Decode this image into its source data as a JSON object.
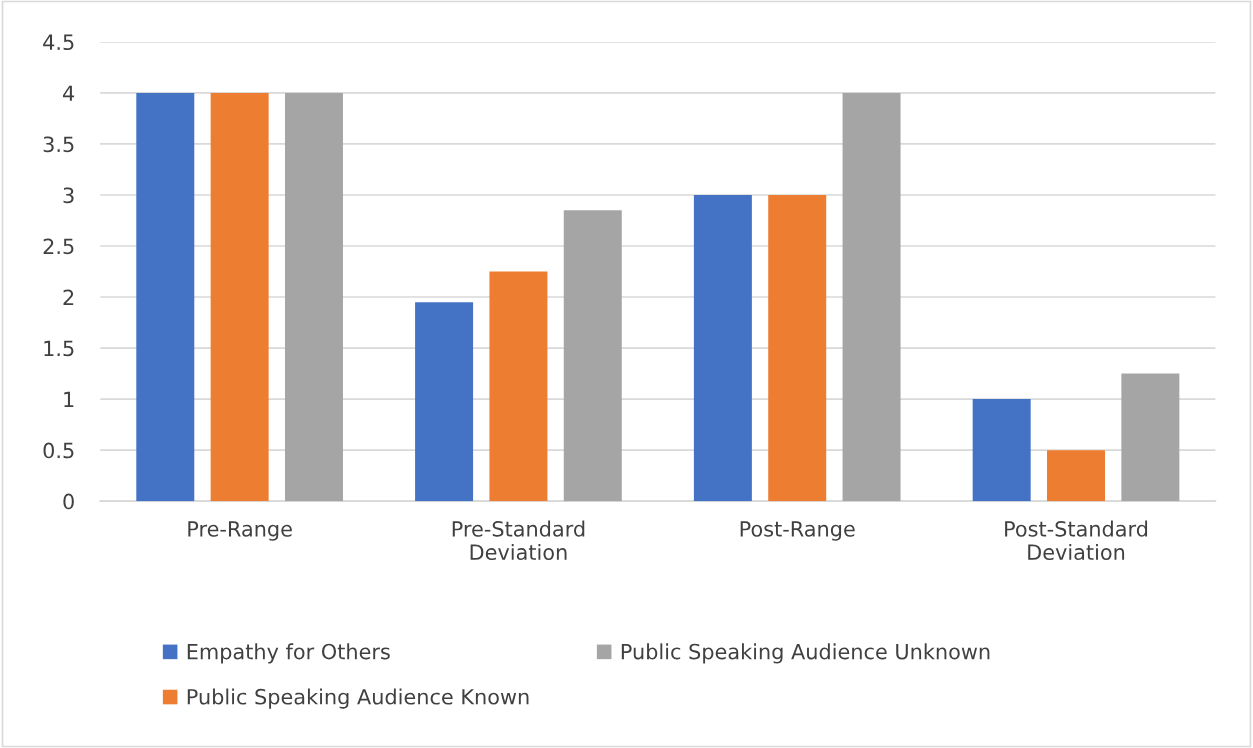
{
  "chart_data": {
    "type": "bar",
    "categories": [
      "Pre-Range",
      "Pre-Standard\nDeviation",
      "Post-Range",
      "Post-Standard\nDeviation"
    ],
    "series": [
      {
        "name": "Empathy for Others",
        "color": "#4472c4",
        "values": [
          4,
          1.95,
          3,
          1.0
        ]
      },
      {
        "name": "Public Speaking Audience Known",
        "color": "#ed7d31",
        "values": [
          4,
          2.25,
          3,
          0.5
        ]
      },
      {
        "name": "Public Speaking Audience Unknown",
        "color": "#a5a5a5",
        "values": [
          4,
          2.85,
          4,
          1.25
        ]
      }
    ],
    "ylim": [
      0,
      4.5
    ],
    "yticks": [
      0,
      {
        "value": 0.5,
        "label": "0.5"
      },
      1,
      {
        "value": 1.5,
        "label": "1.5"
      },
      2,
      {
        "value": 2.5,
        "label": "2.5"
      },
      3,
      {
        "value": 3.5,
        "label": "3.5"
      },
      4,
      {
        "value": 4.5,
        "label": "4.5"
      }
    ],
    "grid": "y",
    "legend": "bottom"
  }
}
